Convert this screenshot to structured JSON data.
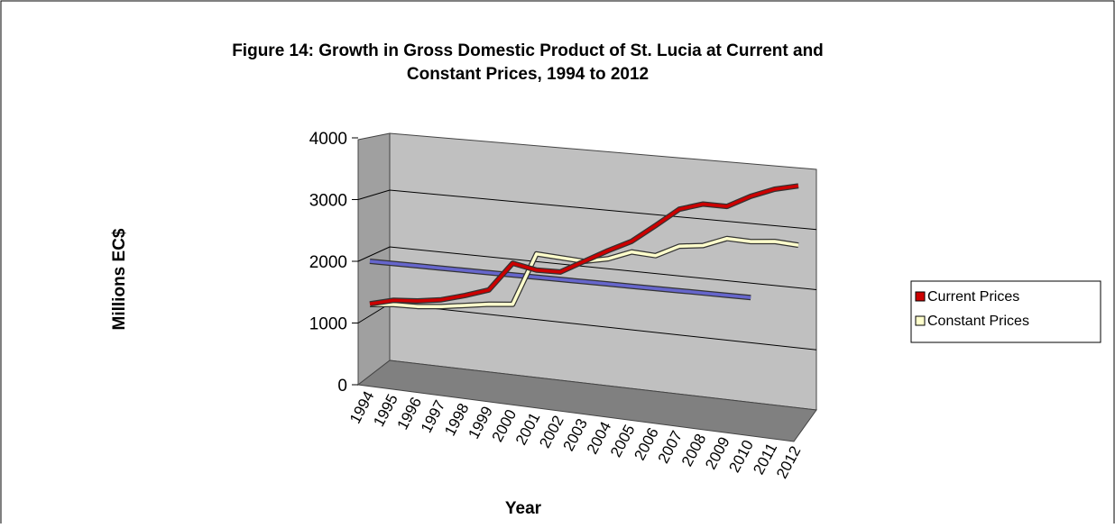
{
  "chart_data": {
    "type": "line",
    "title": [
      "Figure 14: Growth in Gross Domestic Product of St. Lucia at Current and",
      "Constant Prices, 1994 to 2012"
    ],
    "y_label": "Millions EC$",
    "x_label": "Year",
    "categories": [
      "1994",
      "1995",
      "1996",
      "1997",
      "1998",
      "1999",
      "2000",
      "2001",
      "2002",
      "2003",
      "2004",
      "2005",
      "2006",
      "2007",
      "2008",
      "2009",
      "2010",
      "2011",
      "2012"
    ],
    "series": [
      {
        "name": "Current Prices",
        "color": "#cc0000",
        "values": [
          1310,
          1410,
          1440,
          1500,
          1610,
          1740,
          2210,
          2140,
          2150,
          2360,
          2570,
          2760,
          3050,
          3350,
          3470,
          3470,
          3670,
          3820,
          3910
        ]
      },
      {
        "name": "Constant Prices",
        "color": "#ffffcc",
        "values": [
          1300,
          1340,
          1350,
          1390,
          1450,
          1510,
          1550,
          2400,
          2380,
          2360,
          2440,
          2590,
          2570,
          2760,
          2810,
          2960,
          2950,
          2990,
          2970
        ]
      },
      {
        "color": "#6666cc",
        "values": [
          2000,
          2004,
          2008,
          2011,
          2015,
          2019,
          2023,
          2026,
          2030,
          2034,
          2038,
          2041,
          2045,
          2049,
          2053,
          2056,
          2060,
          null,
          null
        ]
      }
    ],
    "ylim": [
      0,
      4000
    ],
    "yticks": [
      0,
      1000,
      2000,
      3000,
      4000
    ],
    "grid": true,
    "legend": "right"
  }
}
